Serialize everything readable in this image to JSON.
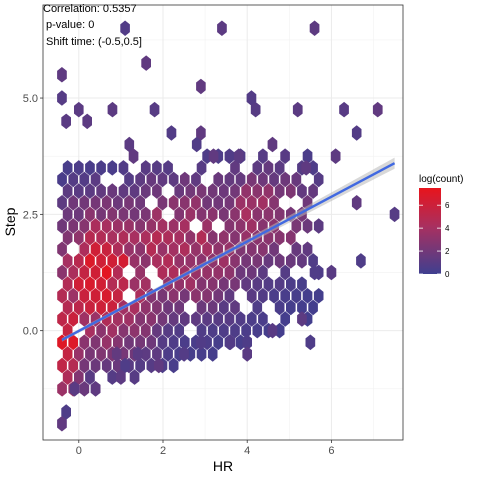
{
  "chart_data": {
    "type": "hexbin",
    "title": "",
    "xlabel": "HR",
    "ylabel": "Step",
    "xlim": [
      -0.85,
      7.7
    ],
    "ylim": [
      -2.35,
      7.0
    ],
    "x_ticks": [
      0,
      2,
      4,
      6
    ],
    "y_ticks": [
      0.0,
      2.5,
      5.0
    ],
    "y_tick_labels": [
      "0.0",
      "2.5",
      "5.0"
    ],
    "grid": true,
    "annotations": [
      "Correlation:  0.5357",
      "p-value:  0",
      "Shift time:  (-0.5,0.5]"
    ],
    "legend": {
      "title": "log(count)",
      "position": "right",
      "min": 0,
      "max": 7.5,
      "ticks": [
        0,
        2,
        4,
        6
      ],
      "colors": {
        "low": "#3f3f8f",
        "high": "#e8141c"
      }
    },
    "hex": {
      "dx": 0.265,
      "dy": 0.25
    },
    "regression": {
      "x0": -0.4,
      "y0": -0.2,
      "x1": 7.5,
      "y1": 3.6,
      "ci_start": 0.04,
      "ci_end": 0.12,
      "color": "#4169e1",
      "band_color": "#b8b8b8"
    },
    "outliers": [
      [
        1.1,
        6.5
      ],
      [
        3.4,
        6.5
      ],
      [
        5.6,
        6.5
      ],
      [
        -0.4,
        5.5
      ],
      [
        1.6,
        5.75
      ],
      [
        2.9,
        5.25
      ],
      [
        -0.4,
        5.0
      ],
      [
        0.0,
        4.75
      ],
      [
        0.8,
        4.75
      ],
      [
        1.8,
        4.75
      ],
      [
        4.1,
        5.0
      ],
      [
        4.2,
        4.75
      ],
      [
        5.2,
        4.75
      ],
      [
        6.3,
        4.75
      ],
      [
        7.1,
        4.75
      ],
      [
        -0.3,
        4.5
      ],
      [
        0.2,
        4.5
      ],
      [
        2.2,
        4.25
      ],
      [
        2.9,
        4.25
      ],
      [
        6.6,
        4.25
      ],
      [
        1.2,
        4.0
      ],
      [
        2.8,
        4.0
      ],
      [
        4.6,
        4.0
      ],
      [
        1.3,
        3.75
      ],
      [
        3.2,
        3.75
      ],
      [
        3.8,
        3.75
      ],
      [
        4.9,
        3.75
      ],
      [
        6.1,
        3.75
      ],
      [
        5.4,
        3.5
      ],
      [
        6.6,
        2.75
      ],
      [
        7.5,
        2.5
      ],
      [
        6.7,
        1.5
      ],
      [
        6.0,
        1.25
      ],
      [
        5.6,
        1.25
      ],
      [
        5.3,
        0.25
      ],
      [
        5.5,
        -0.25
      ],
      [
        4.0,
        -0.25
      ],
      [
        3.6,
        -0.25
      ],
      [
        2.9,
        -0.25
      ],
      [
        4.6,
        0.0
      ],
      [
        2.5,
        -0.5
      ],
      [
        4.0,
        -0.5
      ],
      [
        1.4,
        -0.5
      ],
      [
        1.1,
        -0.75
      ],
      [
        0.9,
        -0.5
      ],
      [
        1.9,
        -0.75
      ],
      [
        1.0,
        -1.0
      ],
      [
        0.4,
        -1.25
      ],
      [
        -0.1,
        -1.25
      ],
      [
        -0.3,
        -1.75
      ],
      [
        -0.4,
        -2.0
      ]
    ],
    "density_clusters": [
      {
        "center": [
          0.6,
          1.1
        ],
        "sx": 1.0,
        "sy": 1.1,
        "peak": 6.2
      },
      {
        "center": [
          -0.35,
          -0.2
        ],
        "sx": 0.35,
        "sy": 1.1,
        "peak": 7.0
      },
      {
        "center": [
          2.4,
          1.8
        ],
        "sx": 1.3,
        "sy": 1.0,
        "peak": 4.4
      },
      {
        "center": [
          4.2,
          2.4
        ],
        "sx": 1.1,
        "sy": 0.8,
        "peak": 3.6
      }
    ]
  }
}
